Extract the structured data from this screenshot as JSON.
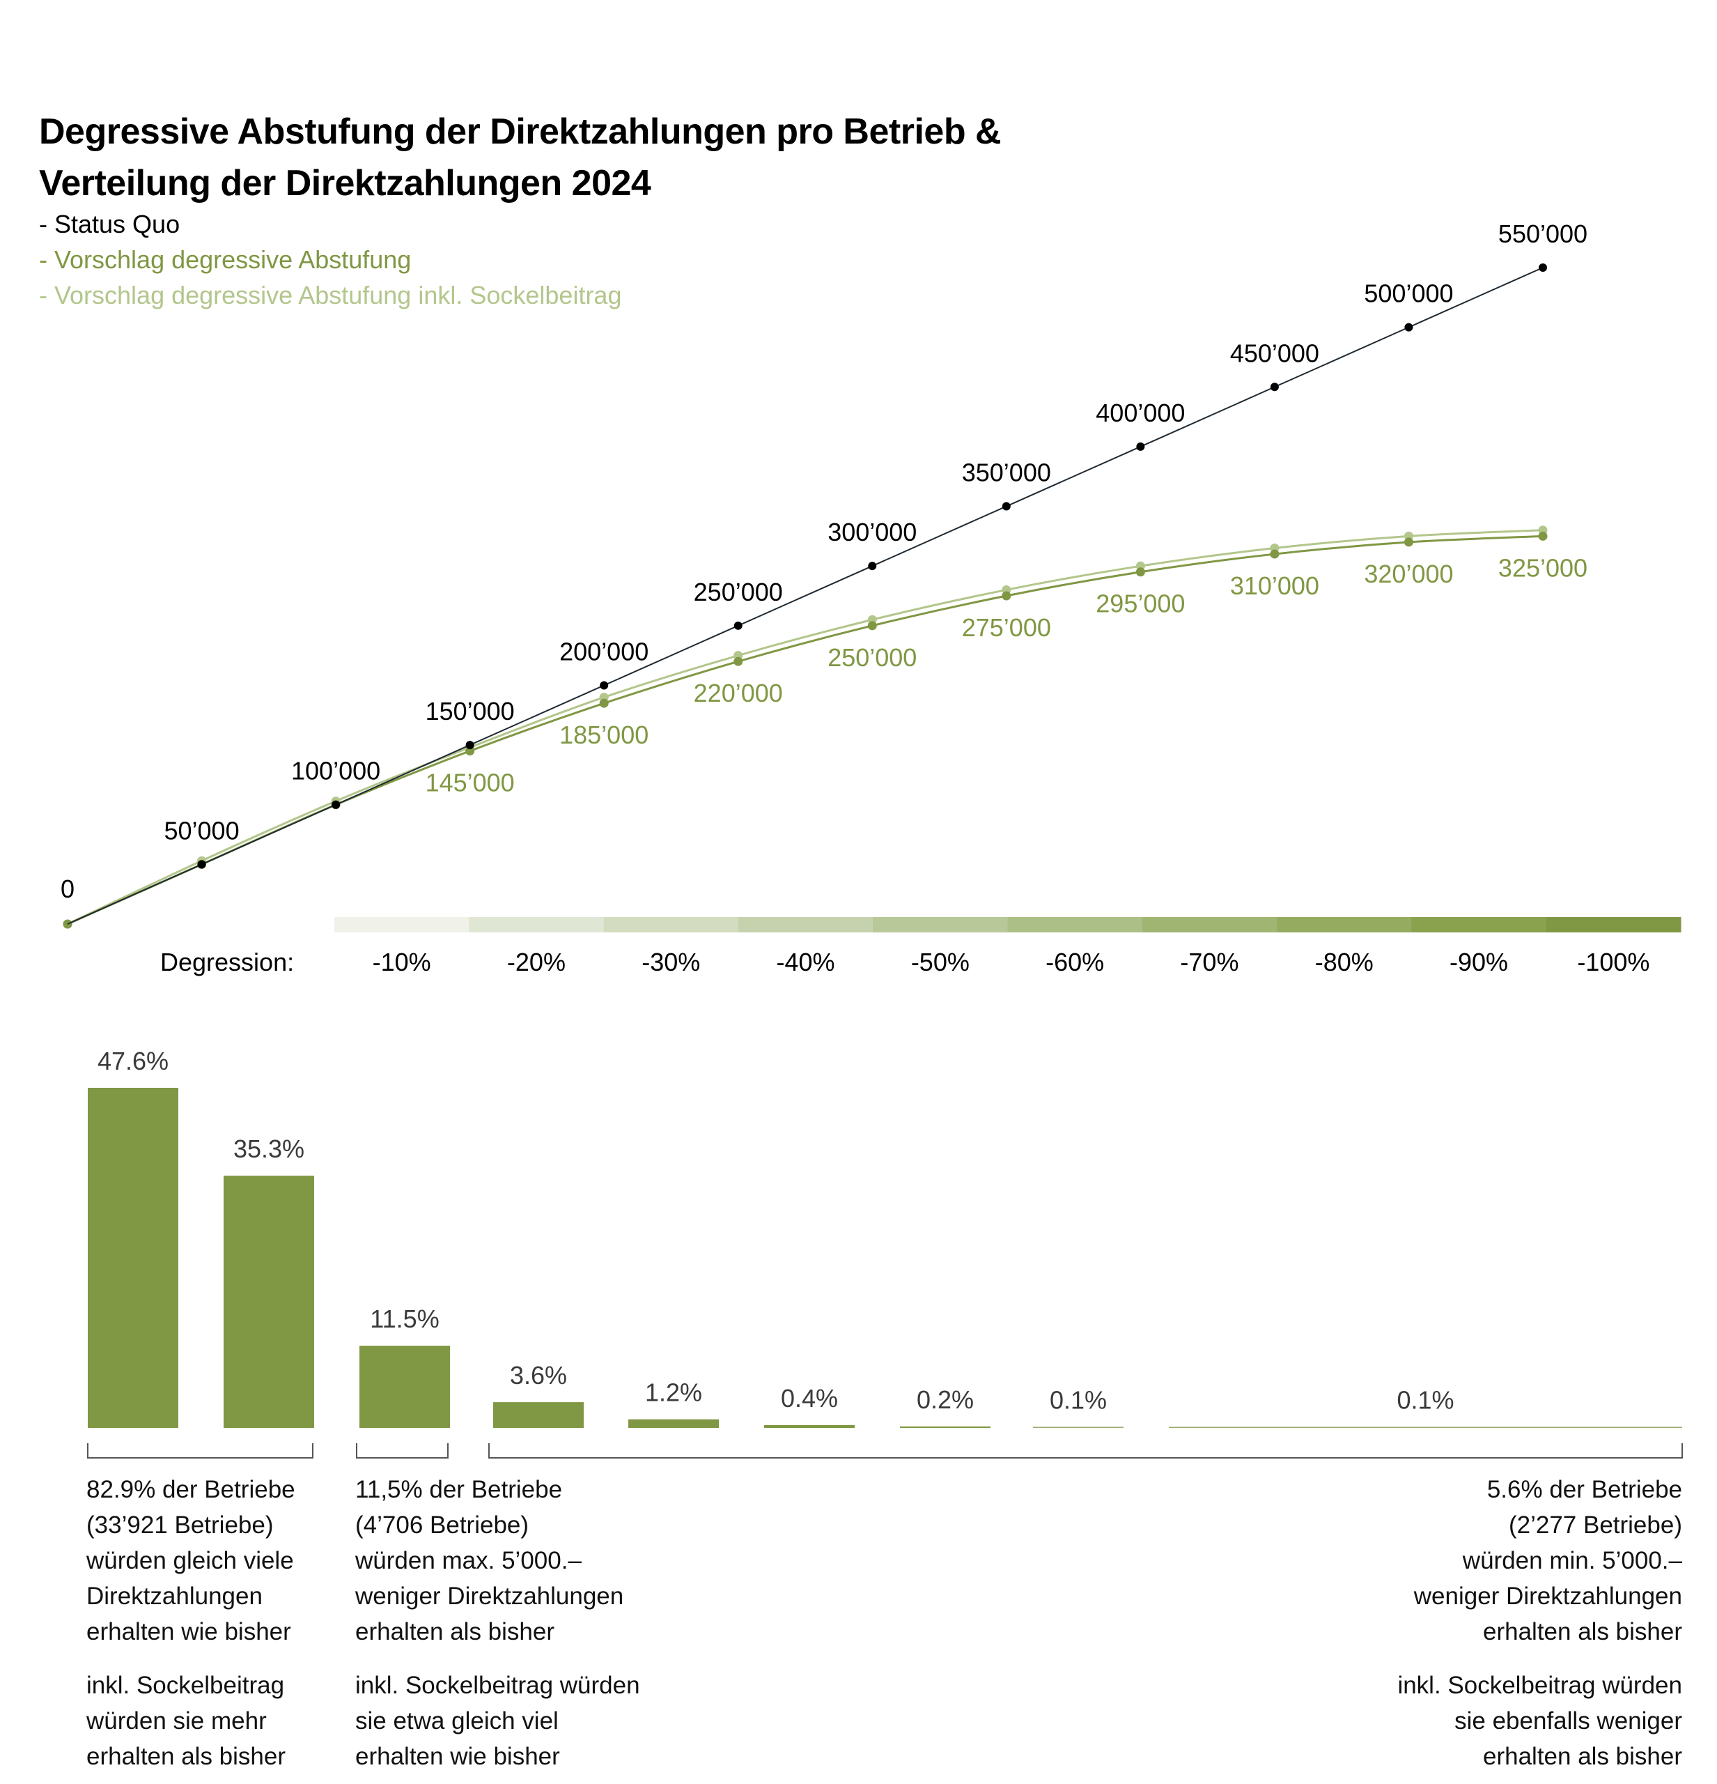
{
  "title_lines": [
    "Degressive Abstufung der Direktzahlungen pro Betrieb &",
    "Verteilung der Direktzahlungen 2024"
  ],
  "legend": [
    {
      "label": "- Status Quo",
      "color": "#000000"
    },
    {
      "label": "- Vorschlag degressive Abstufung",
      "color": "#809743"
    },
    {
      "label": "- Vorschlag degressive Abstufung inkl. Sockelbeitrag",
      "color": "#b3c68c"
    }
  ],
  "chart_data": [
    {
      "type": "line",
      "title": "Degressive Abstufung der Direktzahlungen pro Betrieb",
      "x": [
        0,
        50000,
        100000,
        150000,
        200000,
        250000,
        300000,
        350000,
        400000,
        450000,
        500000,
        550000
      ],
      "series": [
        {
          "name": "Status Quo",
          "color": "#1f2a33",
          "marker_color": "#000000",
          "values": [
            0,
            50000,
            100000,
            150000,
            200000,
            250000,
            300000,
            350000,
            400000,
            450000,
            500000,
            550000
          ],
          "labels": [
            "0",
            "50’000",
            "100’000",
            "150’000",
            "200’000",
            "250’000",
            "300’000",
            "350’000",
            "400’000",
            "450’000",
            "500’000",
            "550’000"
          ]
        },
        {
          "name": "Vorschlag degressive Abstufung",
          "color": "#809743",
          "values": [
            0,
            50000,
            100000,
            145000,
            185000,
            220000,
            250000,
            275000,
            295000,
            310000,
            320000,
            325000
          ],
          "labels": [
            "",
            "",
            "",
            "145’000",
            "185’000",
            "220’000",
            "250’000",
            "275’000",
            "295’000",
            "310’000",
            "320’000",
            "325’000"
          ]
        },
        {
          "name": "Vorschlag degressive Abstufung inkl. Sockelbeitrag",
          "color": "#b3c68c",
          "values": [
            0,
            53000,
            103000,
            148000,
            190000,
            225000,
            255000,
            280000,
            300000,
            315000,
            325000,
            330000
          ],
          "labels": []
        }
      ],
      "degression": {
        "label": "Degression:",
        "steps": [
          "-10%",
          "-20%",
          "-30%",
          "-40%",
          "-50%",
          "-60%",
          "-70%",
          "-80%",
          "-90%",
          "-100%"
        ],
        "colors": [
          "#f0f2ea",
          "#e0e6d4",
          "#d3dcc0",
          "#c6d2ad",
          "#b8c899",
          "#acbf86",
          "#a1b573",
          "#95ab60",
          "#8aa14e",
          "#809743"
        ]
      },
      "xlim": [
        0,
        550000
      ],
      "ylim": [
        0,
        550000
      ],
      "grid": false
    },
    {
      "type": "bar",
      "title": "Verteilung der Direktzahlungen 2024",
      "categories": [
        "1",
        "2",
        "3",
        "4",
        "5",
        "6",
        "7",
        "8",
        "9"
      ],
      "values": [
        47.6,
        35.3,
        11.5,
        3.6,
        1.2,
        0.4,
        0.2,
        0.1,
        0.1
      ],
      "labels": [
        "47.6%",
        "35.3%",
        "11.5%",
        "3.6%",
        "1.2%",
        "0.4%",
        "0.2%",
        "0.1%",
        "0.1%"
      ],
      "bar_color": "#809743",
      "unit": "%"
    }
  ],
  "groups": [
    {
      "paragraphs": [
        [
          "82.9% der Betriebe",
          "(33’921 Betriebe)",
          "würden gleich viele",
          "Direktzahlungen",
          "erhalten wie bisher"
        ],
        [
          "inkl. Sockelbeitrag",
          "würden sie mehr",
          "erhalten als bisher"
        ]
      ]
    },
    {
      "paragraphs": [
        [
          "11,5% der Betriebe",
          "(4’706 Betriebe)",
          "würden max. 5’000.–",
          "weniger Direktzahlungen",
          "erhalten als bisher"
        ],
        [
          "inkl. Sockelbeitrag würden",
          "sie etwa gleich viel",
          "erhalten wie bisher"
        ]
      ]
    },
    {
      "paragraphs": [
        [
          "5.6% der Betriebe",
          "(2’277 Betriebe)",
          "würden min. 5’000.–",
          "weniger Direktzahlungen",
          "erhalten als bisher"
        ],
        [
          "inkl. Sockelbeitrag würden",
          "sie ebenfalls weniger",
          "erhalten als bisher"
        ]
      ]
    }
  ]
}
